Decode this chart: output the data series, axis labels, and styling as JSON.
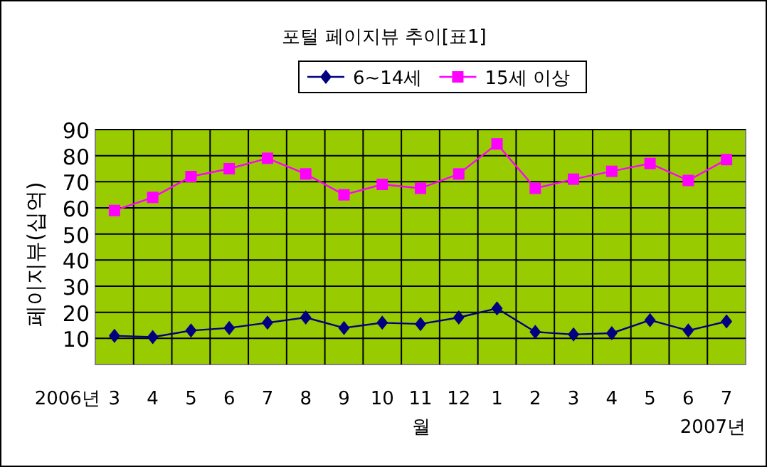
{
  "chart_data": {
    "type": "line",
    "title": "포털 페이지뷰 추이[표1]",
    "xlabel": "월",
    "ylabel": "페이지뷰(십억)",
    "categories": [
      "3",
      "4",
      "5",
      "6",
      "7",
      "8",
      "9",
      "10",
      "11",
      "12",
      "1",
      "2",
      "3",
      "4",
      "5",
      "6",
      "7"
    ],
    "series": [
      {
        "name": "6~14세",
        "color": "#000080",
        "marker": "diamond",
        "line_style": "solid",
        "values": [
          11,
          10.5,
          13,
          14,
          16,
          18,
          14,
          16,
          15.5,
          18,
          21.5,
          12.5,
          11.5,
          12,
          17,
          13,
          16.5
        ]
      },
      {
        "name": "15세 이상",
        "color": "#ff00ff",
        "marker": "square",
        "line_style": "solid",
        "values": [
          59,
          64,
          72,
          75,
          79,
          73,
          65,
          69,
          67.5,
          73,
          84.5,
          67.5,
          71,
          74,
          77,
          70.5,
          78.5
        ]
      }
    ],
    "ylim": [
      0,
      90
    ],
    "yticks": [
      10,
      20,
      30,
      40,
      50,
      60,
      70,
      80,
      90
    ],
    "grid": true,
    "legend": "top",
    "annotations": [
      "2006년",
      "2007년"
    ]
  }
}
